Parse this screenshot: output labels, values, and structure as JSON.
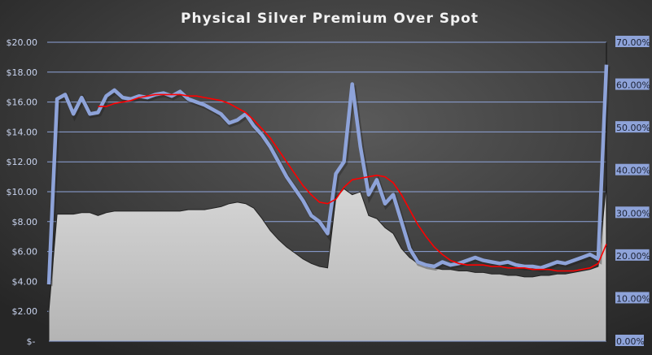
{
  "chart_data": {
    "type": "line",
    "title": "Physical Silver Premium Over Spot",
    "xlabel": "",
    "ylabel": "",
    "ylim": [
      0,
      20
    ],
    "y2lim": [
      0,
      0.7
    ],
    "y_ticks": [
      "$-",
      "$2.00",
      "$4.00",
      "$6.00",
      "$8.00",
      "$10.00",
      "$12.00",
      "$14.00",
      "$16.00",
      "$18.00",
      "$20.00"
    ],
    "y2_ticks": [
      "0.00%",
      "10.00%",
      "20.00%",
      "30.00%",
      "40.00%",
      "50.00%",
      "60.00%",
      "70.00%"
    ],
    "grid": true,
    "legend": "none",
    "colors": {
      "line": "#8ea3d9",
      "moving_average": "#ff0000",
      "area": "#c8c8c8",
      "grid": "#8ea3d9",
      "right_label_bg": "#8ea3d9"
    },
    "series": [
      {
        "type": "area",
        "values": [
          2,
          8.5,
          8.5,
          8.5,
          8.6,
          8.6,
          8.4,
          8.6,
          8.7,
          8.7,
          8.7,
          8.7,
          8.7,
          8.7,
          8.7,
          8.7,
          8.7,
          8.8,
          8.8,
          8.8,
          8.9,
          9.0,
          9.2,
          9.3,
          9.2,
          8.9,
          8.2,
          7.4,
          6.8,
          6.3,
          5.9,
          5.5,
          5.2,
          5,
          4.9,
          9.6,
          10.2,
          9.8,
          10,
          8.4,
          8.2,
          7.6,
          7.2,
          6.2,
          5.6,
          5.2,
          5,
          4.9,
          4.8,
          4.8,
          4.7,
          4.7,
          4.6,
          4.6,
          4.5,
          4.5,
          4.4,
          4.4,
          4.3,
          4.3,
          4.4,
          4.4,
          4.5,
          4.5,
          4.6,
          4.7,
          4.8,
          5,
          10.5
        ]
      },
      {
        "type": "line",
        "values": [
          3.8,
          16.2,
          16.5,
          15.2,
          16.3,
          15.2,
          15.3,
          16.4,
          16.8,
          16.3,
          16.2,
          16.4,
          16.3,
          16.5,
          16.6,
          16.4,
          16.7,
          16.2,
          16,
          15.8,
          15.5,
          15.2,
          14.6,
          14.8,
          15.2,
          14.4,
          13.8,
          13,
          12,
          11,
          10.2,
          9.4,
          8.4,
          8,
          7.2,
          11.2,
          12,
          17.2,
          13,
          9.8,
          10.8,
          9.2,
          9.8,
          8,
          6.2,
          5.3,
          5.1,
          5,
          5.3,
          5.1,
          5.2,
          5.4,
          5.6,
          5.4,
          5.3,
          5.2,
          5.3,
          5.1,
          5,
          5,
          4.9,
          5.1,
          5.3,
          5.2,
          5.4,
          5.6,
          5.8,
          5.5,
          18.5
        ]
      },
      {
        "type": "line",
        "values": [
          null,
          null,
          null,
          null,
          null,
          null,
          15.7,
          15.7,
          15.9,
          16,
          16.1,
          16.3,
          16.4,
          16.5,
          16.5,
          16.5,
          16.5,
          16.4,
          16.4,
          16.3,
          16.2,
          16.1,
          15.9,
          15.6,
          15.3,
          14.8,
          14.2,
          13.6,
          12.8,
          12,
          11.2,
          10.4,
          9.8,
          9.3,
          9.2,
          9.5,
          10.3,
          10.8,
          10.9,
          11,
          11.1,
          11,
          10.6,
          9.8,
          8.8,
          7.8,
          7,
          6.3,
          5.8,
          5.4,
          5.2,
          5.1,
          5.1,
          5.1,
          5,
          5,
          4.9,
          4.9,
          4.9,
          4.8,
          4.8,
          4.8,
          4.7,
          4.7,
          4.7,
          4.8,
          4.9,
          5.2,
          6.5
        ]
      }
    ]
  }
}
